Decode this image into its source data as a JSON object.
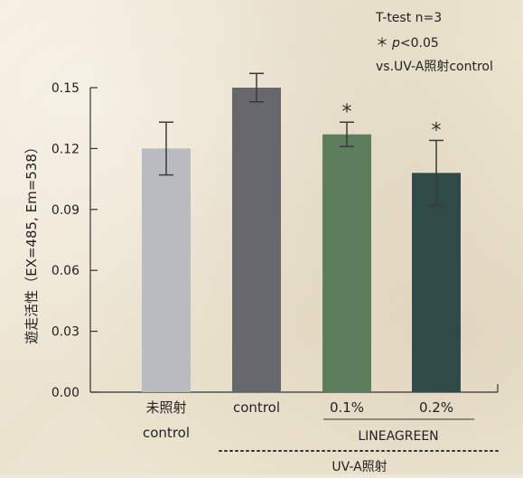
{
  "chart_data": {
    "type": "bar",
    "ylabel": "遊走活性（EX=485, Em=538）",
    "ylim": [
      0,
      0.15
    ],
    "yticks": [
      "0.00",
      "0.03",
      "0.06",
      "0.09",
      "0.12",
      "0.15"
    ],
    "ytick_values": [
      0,
      0.03,
      0.06,
      0.09,
      0.12,
      0.15
    ],
    "categories": [
      {
        "line1": "未照射",
        "line2": "control"
      },
      {
        "line1": "control",
        "line2": ""
      },
      {
        "line1": "0.1%",
        "line2": ""
      },
      {
        "line1": "0.2%",
        "line2": ""
      }
    ],
    "values": [
      0.12,
      0.15,
      0.127,
      0.108
    ],
    "errors": [
      0.013,
      0.007,
      0.006,
      0.016
    ],
    "significance": [
      "",
      "",
      "*",
      "*"
    ],
    "bar_colors": [
      "#b9bbc0",
      "#66686d",
      "#5d7e5c",
      "#2f4a47"
    ],
    "group_labels": {
      "product": "LINEAGREEN",
      "treatment": "UV-A照射"
    },
    "legend": {
      "line1": "T-test n=3",
      "line2_star": "＊",
      "line2_p": "p",
      "line2_rest": "<0.05",
      "line3": "vs.UV-A照射control"
    }
  }
}
